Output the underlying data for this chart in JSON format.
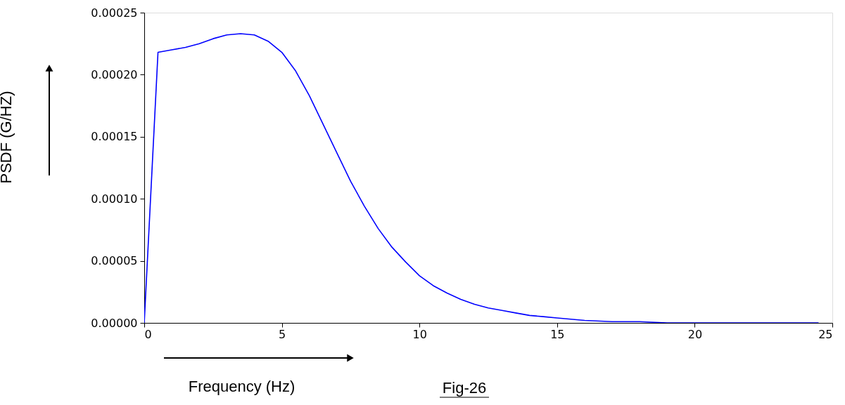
{
  "chart_data": {
    "type": "line",
    "xlabel": "Frequency (Hz)",
    "ylabel": "PSDF (G/HZ)",
    "annotations": [
      "Fig-26"
    ],
    "x": [
      0,
      0.5,
      1,
      1.5,
      2,
      2.5,
      3,
      3.5,
      4,
      4.5,
      5,
      5.5,
      6,
      6.5,
      7,
      7.5,
      8,
      8.5,
      9,
      9.5,
      10,
      10.5,
      11,
      11.5,
      12,
      12.5,
      13,
      13.5,
      14,
      14.5,
      15,
      16,
      17,
      18,
      19,
      20,
      22,
      24.5
    ],
    "series": [
      {
        "color": "#0000ff",
        "values": [
          0,
          0.000218,
          0.00022,
          0.000222,
          0.000225,
          0.000229,
          0.000232,
          0.000233,
          0.000232,
          0.000227,
          0.000218,
          0.000203,
          0.000183,
          0.00016,
          0.000137,
          0.000114,
          9.4e-05,
          7.6e-05,
          6.1e-05,
          4.9e-05,
          3.8e-05,
          3e-05,
          2.4e-05,
          1.9e-05,
          1.5e-05,
          1.2e-05,
          1e-05,
          8e-06,
          6e-06,
          5e-06,
          4e-06,
          2e-06,
          1e-06,
          1e-06,
          0,
          0,
          0,
          0
        ]
      }
    ],
    "xlim": [
      0,
      25
    ],
    "xticks": [
      0,
      5,
      10,
      15,
      20,
      25
    ],
    "ylim": [
      0,
      0.00025
    ],
    "yticks": [
      {
        "value": 0,
        "label": "0.00000"
      },
      {
        "value": 5e-05,
        "label": "0.00005"
      },
      {
        "value": 0.0001,
        "label": "0.00010"
      },
      {
        "value": 0.00015,
        "label": "0.00015"
      },
      {
        "value": 0.0002,
        "label": "0.00020"
      },
      {
        "value": 0.00025,
        "label": "0.00025"
      }
    ],
    "grid": false,
    "marker": "none",
    "line_style": "solid"
  }
}
